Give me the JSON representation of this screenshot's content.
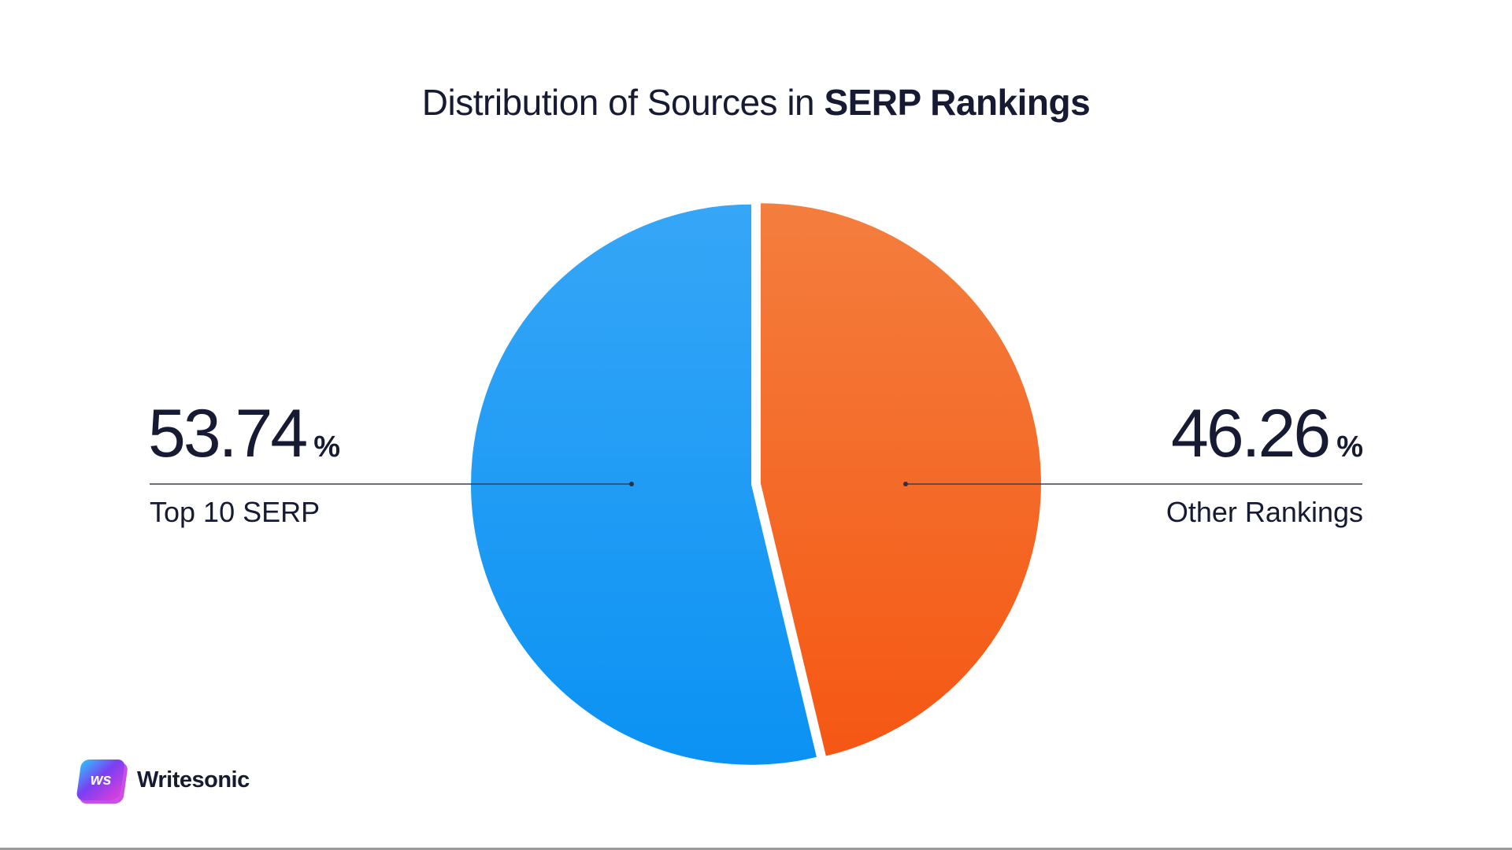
{
  "title": {
    "regular": "Distribution of Sources in",
    "bold": "SERP Rankings"
  },
  "chart_data": {
    "type": "pie",
    "title": "Distribution of Sources in SERP Rankings",
    "slices": [
      {
        "label": "Top 10 SERP",
        "value": 53.74,
        "display": "53.74",
        "unit": "%",
        "color": "#1a9cf5"
      },
      {
        "label": "Other Rankings",
        "value": 46.26,
        "display": "46.26",
        "unit": "%",
        "color": "#f4682a"
      }
    ],
    "legend": "none"
  },
  "brand": {
    "logo_text": "ws",
    "name": "Writesonic"
  }
}
